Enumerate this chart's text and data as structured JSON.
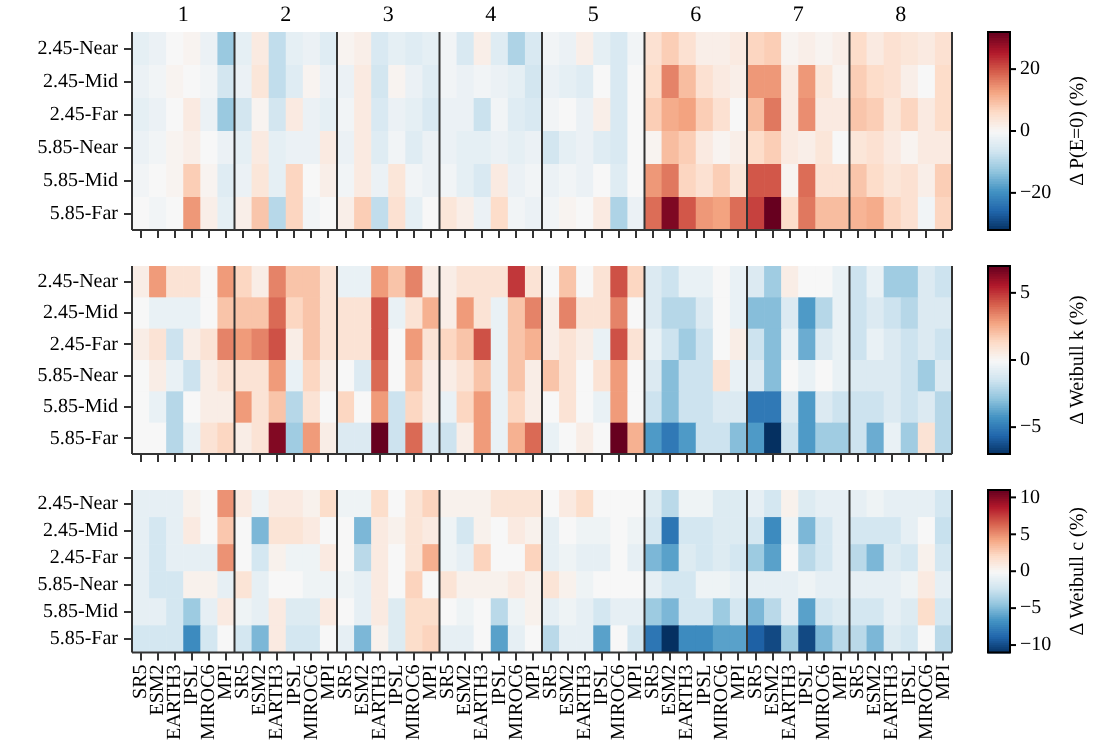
{
  "chart_data": [
    {
      "type": "heatmap",
      "clabel": "Δ P(E=0) (%)",
      "clim": [
        -32,
        32
      ],
      "cticks": [
        -20,
        0,
        20
      ],
      "annotations": [
        "1",
        "2",
        "3",
        "4",
        "5",
        "6",
        "7",
        "8"
      ],
      "categories": [
        null,
        null,
        null,
        null,
        null,
        null,
        null,
        null,
        null,
        null,
        null,
        null,
        null,
        null,
        null,
        null,
        null,
        null,
        null,
        null,
        null,
        null,
        null,
        null,
        null,
        null,
        null,
        null,
        null,
        null,
        null,
        null,
        null,
        null,
        null,
        null,
        null,
        null,
        null,
        null,
        null,
        null,
        null,
        null,
        null,
        null,
        null,
        null
      ],
      "y_categories": [
        "2.45-Near",
        "2.45-Mid",
        "2.45-Far",
        "5.85-Near",
        "5.85-Mid",
        "5.85-Far"
      ],
      "cells": [
        [
          -3,
          -2,
          0,
          1,
          -2,
          -12,
          -3,
          3,
          -8,
          -3,
          -2,
          -4,
          1,
          2,
          -5,
          -3,
          -4,
          -3,
          -1,
          -5,
          2,
          -4,
          -10,
          -5,
          -1,
          -2,
          2,
          -3,
          -5,
          -1,
          5,
          8,
          5,
          2,
          2,
          3,
          7,
          8,
          1,
          2,
          1,
          2,
          6,
          3,
          5,
          4,
          3,
          5
        ],
        [
          -2,
          -1,
          1,
          0,
          -1,
          -6,
          -2,
          4,
          -8,
          -4,
          1,
          -2,
          -2,
          3,
          -6,
          1,
          -2,
          -4,
          -1,
          -2,
          -1,
          -2,
          -3,
          -6,
          -2,
          -3,
          -4,
          0,
          -5,
          0,
          6,
          16,
          10,
          5,
          3,
          2,
          14,
          14,
          3,
          14,
          4,
          1,
          8,
          6,
          5,
          2,
          0,
          6
        ],
        [
          -3,
          -2,
          0,
          3,
          -2,
          -12,
          -6,
          1,
          -6,
          3,
          -2,
          -3,
          -1,
          3,
          -5,
          -2,
          -3,
          -5,
          -2,
          -2,
          -7,
          -1,
          -4,
          -5,
          -1,
          0,
          -2,
          2,
          -5,
          0,
          8,
          12,
          13,
          8,
          5,
          0,
          10,
          17,
          3,
          15,
          3,
          3,
          9,
          8,
          4,
          7,
          3,
          6
        ],
        [
          -2,
          -1,
          1,
          2,
          0,
          -2,
          -3,
          3,
          -3,
          -2,
          -2,
          3,
          -2,
          3,
          -4,
          -1,
          -4,
          -2,
          -2,
          -3,
          -3,
          -2,
          -3,
          -2,
          -6,
          -3,
          -2,
          -4,
          -5,
          0,
          1,
          10,
          8,
          3,
          1,
          2,
          6,
          8,
          3,
          2,
          4,
          0,
          4,
          5,
          3,
          1,
          3,
          3
        ],
        [
          -1,
          0,
          1,
          8,
          1,
          -4,
          -2,
          4,
          -3,
          7,
          0,
          2,
          -1,
          3,
          -2,
          4,
          -1,
          -2,
          -1,
          -3,
          -5,
          3,
          -2,
          -1,
          -2,
          -1,
          -2,
          0,
          -4,
          0,
          14,
          17,
          7,
          5,
          8,
          4,
          20,
          20,
          1,
          18,
          5,
          5,
          9,
          6,
          4,
          5,
          2,
          8
        ],
        [
          0,
          -1,
          0,
          14,
          2,
          -3,
          2,
          9,
          -9,
          7,
          -1,
          0,
          2,
          8,
          -8,
          5,
          -3,
          0,
          4,
          2,
          -2,
          6,
          -1,
          -2,
          -1,
          1,
          0,
          3,
          -10,
          -2,
          18,
          30,
          20,
          14,
          13,
          18,
          22,
          32,
          6,
          17,
          10,
          10,
          11,
          12,
          7,
          5,
          -1,
          7
        ]
      ]
    },
    {
      "type": "heatmap",
      "clabel": "Δ Weibull k (%)",
      "clim": [
        -7,
        7
      ],
      "cticks": [
        -5,
        0,
        5
      ],
      "categories": [
        null,
        null,
        null,
        null,
        null,
        null,
        null,
        null,
        null,
        null,
        null,
        null,
        null,
        null,
        null,
        null,
        null,
        null,
        null,
        null,
        null,
        null,
        null,
        null,
        null,
        null,
        null,
        null,
        null,
        null,
        null,
        null,
        null,
        null,
        null,
        null,
        null,
        null,
        null,
        null,
        null,
        null,
        null,
        null,
        null,
        null,
        null,
        null
      ],
      "y_categories": [
        "2.45-Near",
        "2.45-Mid",
        "2.45-Far",
        "5.85-Near",
        "5.85-Mid",
        "5.85-Far"
      ],
      "cells": [
        [
          0.5,
          3,
          1,
          1,
          0,
          3,
          1.5,
          0.5,
          3.5,
          2,
          2,
          1,
          -0.5,
          -0.5,
          3,
          2,
          3.5,
          0.5,
          0.5,
          1,
          1,
          1,
          5,
          1,
          0,
          2,
          0,
          1,
          4.5,
          1.5,
          -1,
          -1.5,
          -0.5,
          -0.5,
          0,
          -0.5,
          -1,
          -2.5,
          0.5,
          0,
          0,
          -0.5,
          -1.5,
          -0.5,
          -2.5,
          -2.5,
          -1,
          -1.5
        ],
        [
          0,
          -0.5,
          -0.5,
          -0.5,
          0,
          2,
          2,
          2,
          4,
          1.5,
          2,
          1,
          1,
          1,
          4.5,
          -0.5,
          1,
          2.5,
          0.5,
          3,
          1,
          -0.5,
          2,
          3.5,
          0.5,
          3.5,
          1,
          1,
          3.5,
          0,
          -1,
          -2,
          -2,
          -1,
          0,
          -0.5,
          -3,
          -3,
          -1,
          -4,
          -2,
          -0.5,
          -1.5,
          -1,
          -1.5,
          -2,
          -1,
          -1
        ],
        [
          0.5,
          1,
          -1.5,
          0.5,
          1,
          3.5,
          3,
          3.5,
          4.5,
          0.5,
          2,
          1,
          1,
          1,
          4.5,
          0,
          3,
          1,
          1.5,
          2,
          4.5,
          -0.5,
          2,
          2.5,
          0.5,
          1,
          0.5,
          -0.5,
          4.5,
          1,
          -0.5,
          -1.5,
          -2.5,
          -1.5,
          0,
          0.5,
          -1.5,
          -3,
          -0.5,
          -3.5,
          -1,
          -0.5,
          -1.5,
          -0.5,
          -1,
          -1.5,
          -1,
          -1.5
        ],
        [
          0,
          0.5,
          -0.5,
          -1.5,
          0.5,
          1,
          1,
          1,
          3,
          -0.5,
          1.5,
          0.5,
          0,
          -1,
          4,
          0,
          2,
          0.5,
          0.5,
          1,
          2,
          -0.5,
          2,
          0.5,
          2,
          1,
          0,
          1,
          3,
          0,
          -1,
          -3,
          -1.5,
          -1.5,
          1,
          -0.5,
          -1,
          -3,
          0,
          -0.5,
          0,
          -0.5,
          -1,
          -1,
          -1,
          -1.5,
          -2.5,
          -1
        ],
        [
          0,
          -0.5,
          -2,
          0,
          0.5,
          0.5,
          3,
          1,
          2,
          -2,
          1,
          0,
          1.5,
          0,
          3,
          -1.5,
          1.5,
          0.5,
          -0.5,
          1.5,
          3,
          -0.5,
          1.5,
          0.5,
          0,
          1,
          0,
          -0.5,
          3,
          0,
          -1.5,
          -3,
          -1.5,
          -1.5,
          -1,
          -1,
          -5,
          -5,
          -1,
          -4,
          -1,
          -1.5,
          -1.5,
          -1.5,
          -1,
          -1.5,
          -1,
          -2
        ],
        [
          0,
          0,
          -2,
          -0.5,
          1,
          1.5,
          0.5,
          1,
          6.5,
          -2.5,
          3,
          0.5,
          -1,
          -1,
          7,
          -1.5,
          4,
          -1,
          -1.5,
          0.5,
          3,
          -0.5,
          2.5,
          4,
          -0.5,
          0,
          0.5,
          0,
          7,
          2.5,
          -4,
          -5,
          -4,
          -1.5,
          -1.5,
          -3,
          -4,
          -7,
          -1.5,
          -4,
          -2.5,
          -2.5,
          -1.5,
          -3.5,
          -0.5,
          -2.5,
          1,
          -2
        ]
      ]
    },
    {
      "type": "heatmap",
      "clabel": "Δ Weibull c (%)",
      "clim": [
        -11,
        11
      ],
      "cticks": [
        -10,
        -5,
        0,
        5,
        10
      ],
      "categories": [
        "SR5",
        "ESM2",
        "EARTH3",
        "IPSL",
        "MIROC6",
        "MPI",
        "SR5",
        "ESM2",
        "EARTH3",
        "IPSL",
        "MIROC6",
        "MPI",
        "SR5",
        "ESM2",
        "EARTH3",
        "IPSL",
        "MIROC6",
        "MPI",
        "SR5",
        "ESM2",
        "EARTH3",
        "IPSL",
        "MIROC6",
        "MPI",
        "SR5",
        "ESM2",
        "EARTH3",
        "IPSL",
        "MIROC6",
        "MPI",
        "SR5",
        "ESM2",
        "EARTH3",
        "IPSL",
        "MIROC6",
        "MPI",
        "SR5",
        "ESM2",
        "EARTH3",
        "IPSL",
        "MIROC6",
        "MPI",
        "SR5",
        "ESM2",
        "EARTH3",
        "IPSL",
        "MIROC6",
        "MPI"
      ],
      "y_categories": [
        "2.45-Near",
        "2.45-Mid",
        "2.45-Far",
        "5.85-Near",
        "5.85-Mid",
        "5.85-Far"
      ],
      "cells": [
        [
          -1,
          -1,
          -1,
          0.5,
          0,
          5,
          1,
          -0.5,
          1,
          1,
          0.5,
          2,
          -0.5,
          -0.5,
          2,
          0,
          1.5,
          2.5,
          0.5,
          0.5,
          0.5,
          1.5,
          1.5,
          1.5,
          0,
          1,
          2,
          0,
          0,
          0,
          -1.5,
          -3,
          -0.5,
          -0.5,
          -1.5,
          -1.5,
          -1,
          -2,
          0.5,
          -1.5,
          -1,
          -1,
          -1,
          -0.5,
          -1,
          -1,
          -1,
          -2
        ],
        [
          -1,
          -2,
          -1,
          1,
          0,
          3,
          0,
          -5,
          1.5,
          1.5,
          1,
          0,
          0,
          -5,
          1,
          0.5,
          1.5,
          1,
          -0.5,
          -2,
          0.5,
          0,
          1,
          0.5,
          -1,
          0,
          -0.5,
          -0.5,
          0,
          -0.5,
          -2,
          -8,
          -2,
          -2,
          -1.5,
          -1.5,
          -2,
          -7,
          -0.5,
          -5,
          -2,
          -1,
          -2,
          -2,
          -2,
          -1,
          0,
          -2.5
        ],
        [
          -1,
          -2,
          -1,
          -1,
          -1,
          5,
          0,
          -2,
          0.5,
          -0.5,
          -0.5,
          1,
          0,
          -3,
          1,
          0,
          1.5,
          4,
          -0.5,
          -1,
          2.5,
          0,
          0,
          2.5,
          -1,
          -0.5,
          -1,
          -1,
          0,
          -1,
          -5,
          -6,
          -1.5,
          -2,
          -1.5,
          -2,
          -4,
          -6,
          0,
          -3,
          -2,
          -1,
          -3,
          -5,
          -1.5,
          -2,
          0.5,
          -2
        ],
        [
          -1,
          -2,
          -2,
          0.5,
          0.5,
          -1,
          1.5,
          -1,
          0,
          0,
          -0.5,
          -0.5,
          -0.5,
          -1,
          1,
          0,
          2.5,
          0,
          1.5,
          0.5,
          0.5,
          0.5,
          1,
          0.5,
          1.5,
          0.5,
          -0.5,
          0,
          0,
          0,
          -1,
          -2,
          -2,
          -0.5,
          -0.5,
          -1,
          -1,
          -1,
          -1,
          -0.5,
          -1,
          -1,
          -1,
          -1,
          -1,
          -0.5,
          1,
          -1
        ],
        [
          -1,
          -1,
          -2,
          -4,
          -1,
          1,
          -0.5,
          -1,
          1,
          -1.5,
          -1.5,
          1,
          0,
          -1,
          1,
          -1.5,
          2,
          2,
          0,
          -0.5,
          0,
          -3,
          -0.5,
          0.5,
          -1,
          -0.5,
          -1,
          -2,
          -1,
          -1,
          -4,
          -5,
          -2,
          -2,
          -4,
          -2,
          -5,
          -3,
          -1,
          -6,
          -2,
          -1.5,
          -2,
          -2,
          -1,
          -1.5,
          2,
          -2
        ],
        [
          -2,
          -2,
          -2,
          -7,
          -2,
          0,
          -2,
          -5,
          1,
          -2,
          -2,
          0,
          -1,
          -5,
          0.5,
          -1.5,
          2,
          2.5,
          -1,
          -1,
          0,
          -6,
          -1,
          0,
          -3,
          -1,
          -1,
          -6,
          0,
          -2,
          -8,
          -11,
          -7,
          -7,
          -6,
          -6,
          -9,
          -10,
          -4,
          -10,
          -5,
          -3,
          -3,
          -5,
          -1.5,
          -2,
          0,
          -3
        ]
      ]
    }
  ]
}
